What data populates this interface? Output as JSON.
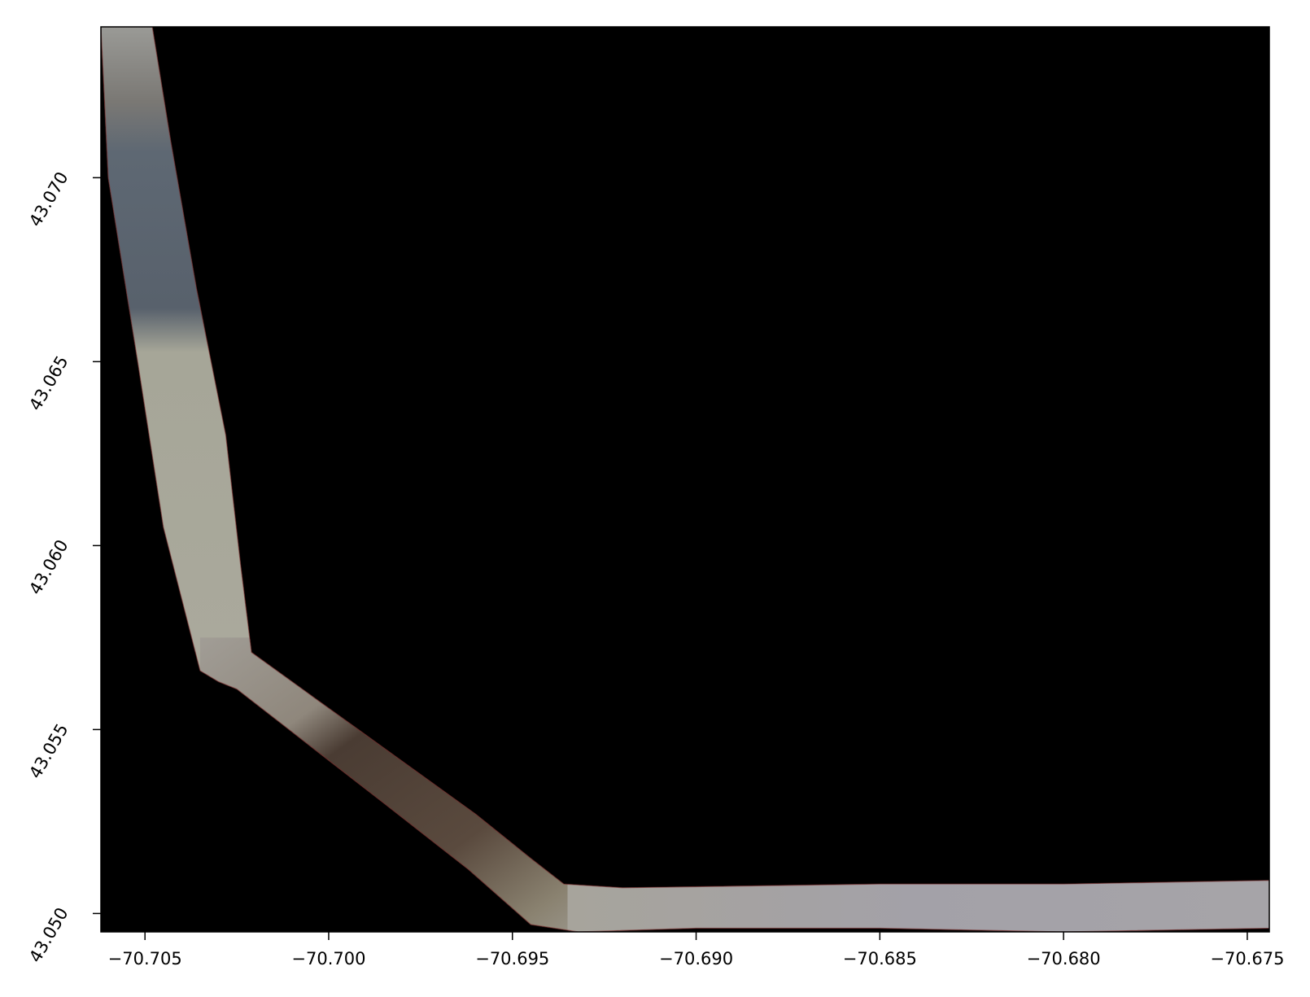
{
  "map": {
    "title": "",
    "xlabel": "",
    "ylabel": "",
    "background_color": "#000000",
    "frame_color": "#000000",
    "x_range": [
      -70.7062,
      -70.6744
    ],
    "y_range": [
      43.0495,
      43.0741
    ],
    "x_ticks": [
      {
        "value": -70.705,
        "label": "−70.705"
      },
      {
        "value": -70.7,
        "label": "−70.700"
      },
      {
        "value": -70.695,
        "label": "−70.695"
      },
      {
        "value": -70.69,
        "label": "−70.690"
      },
      {
        "value": -70.685,
        "label": "−70.685"
      },
      {
        "value": -70.68,
        "label": "−70.680"
      },
      {
        "value": -70.675,
        "label": "−70.675"
      }
    ],
    "y_ticks": [
      {
        "value": 43.05,
        "label": "43.050"
      },
      {
        "value": 43.055,
        "label": "43.055"
      },
      {
        "value": 43.06,
        "label": "43.060"
      },
      {
        "value": 43.065,
        "label": "43.065"
      },
      {
        "value": 43.07,
        "label": "43.070"
      }
    ],
    "swath": {
      "description_colors": {
        "north_leg": "#5c6672",
        "south_leg": "#a9a89a",
        "diagonal_dark": "#4a3a30",
        "east_leg": "#a4a0a6"
      },
      "outline": [
        [
          -70.7062,
          43.0741
        ],
        [
          -70.7048,
          43.0741
        ],
        [
          -70.7043,
          43.071
        ],
        [
          -70.7036,
          43.067
        ],
        [
          -70.7028,
          43.063
        ],
        [
          -70.7024,
          43.0595
        ],
        [
          -70.7021,
          43.0571
        ],
        [
          -70.6985,
          43.0545
        ],
        [
          -70.696,
          43.0527
        ],
        [
          -70.6945,
          43.0515
        ],
        [
          -70.6936,
          43.0508
        ],
        [
          -70.692,
          43.0507
        ],
        [
          -70.685,
          43.0508
        ],
        [
          -70.68,
          43.0508
        ],
        [
          -70.6744,
          43.0509
        ],
        [
          -70.6744,
          43.0496
        ],
        [
          -70.68,
          43.0495
        ],
        [
          -70.685,
          43.0496
        ],
        [
          -70.69,
          43.0496
        ],
        [
          -70.6932,
          43.0495
        ],
        [
          -70.6945,
          43.0497
        ],
        [
          -70.6962,
          43.0512
        ],
        [
          -70.6985,
          43.053
        ],
        [
          -70.7025,
          43.0561
        ],
        [
          -70.703,
          43.0563
        ],
        [
          -70.7035,
          43.0566
        ],
        [
          -70.7045,
          43.0605
        ],
        [
          -70.7052,
          43.065
        ],
        [
          -70.706,
          43.07
        ]
      ]
    }
  }
}
